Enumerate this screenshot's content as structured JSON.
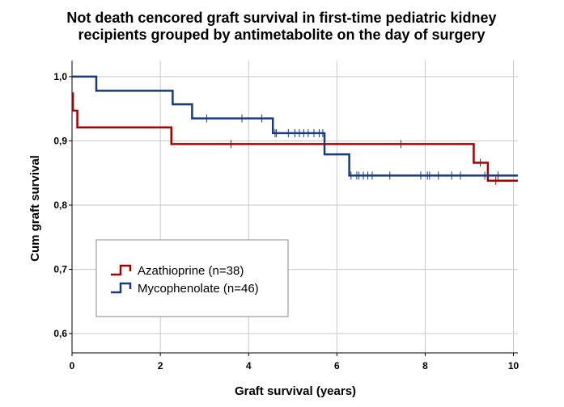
{
  "chart_data": {
    "type": "line",
    "step": true,
    "title_lines": [
      "Not death cencored graft survival in first-time pediatric kidney",
      "recipients grouped by antimetabolite on the day of surgery"
    ],
    "xlabel": "Graft survival (years)",
    "ylabel": "Cum graft survival",
    "xlim": [
      0,
      10.1
    ],
    "ylim": [
      0.57,
      1.025
    ],
    "x_ticks": [
      0,
      2,
      4,
      6,
      8,
      10
    ],
    "x_tick_labels": [
      "0",
      "2",
      "4",
      "6",
      "8",
      "10"
    ],
    "y_ticks": [
      0.6,
      0.7,
      0.8,
      0.9,
      1.0
    ],
    "y_tick_labels": [
      "0,6",
      "0,7",
      "0,8",
      "0,9",
      "1,0"
    ],
    "grid": true,
    "legend_position": "lower-left",
    "series": [
      {
        "name": "Azathioprine (n=38)",
        "color": "#a50000",
        "steps": [
          [
            0,
            0.974
          ],
          [
            0.02,
            0.947
          ],
          [
            0.12,
            0.921
          ],
          [
            2.25,
            0.895
          ],
          [
            9.1,
            0.866
          ],
          [
            9.42,
            0.838
          ],
          [
            10.1,
            0.838
          ]
        ],
        "censored": [
          [
            3.6,
            0.895
          ],
          [
            7.45,
            0.895
          ],
          [
            9.25,
            0.866
          ],
          [
            9.6,
            0.838
          ]
        ]
      },
      {
        "name": "Mycophenolate (n=46)",
        "color": "#1a3a7a",
        "steps": [
          [
            0,
            1.0
          ],
          [
            0.55,
            0.978
          ],
          [
            2.28,
            0.957
          ],
          [
            2.72,
            0.935
          ],
          [
            4.55,
            0.912
          ],
          [
            5.72,
            0.879
          ],
          [
            6.28,
            0.846
          ],
          [
            10.1,
            0.846
          ]
        ],
        "censored": [
          [
            3.05,
            0.935
          ],
          [
            3.85,
            0.935
          ],
          [
            4.3,
            0.935
          ],
          [
            4.6,
            0.912
          ],
          [
            4.63,
            0.912
          ],
          [
            4.9,
            0.912
          ],
          [
            5.05,
            0.912
          ],
          [
            5.15,
            0.912
          ],
          [
            5.25,
            0.912
          ],
          [
            5.35,
            0.912
          ],
          [
            5.48,
            0.912
          ],
          [
            5.6,
            0.912
          ],
          [
            5.68,
            0.912
          ],
          [
            6.32,
            0.846
          ],
          [
            6.45,
            0.846
          ],
          [
            6.5,
            0.846
          ],
          [
            6.6,
            0.846
          ],
          [
            6.7,
            0.846
          ],
          [
            6.8,
            0.846
          ],
          [
            7.2,
            0.846
          ],
          [
            7.9,
            0.846
          ],
          [
            8.05,
            0.846
          ],
          [
            8.1,
            0.846
          ],
          [
            8.3,
            0.846
          ],
          [
            8.6,
            0.846
          ],
          [
            8.8,
            0.846
          ],
          [
            9.35,
            0.846
          ],
          [
            9.65,
            0.846
          ]
        ]
      }
    ]
  }
}
